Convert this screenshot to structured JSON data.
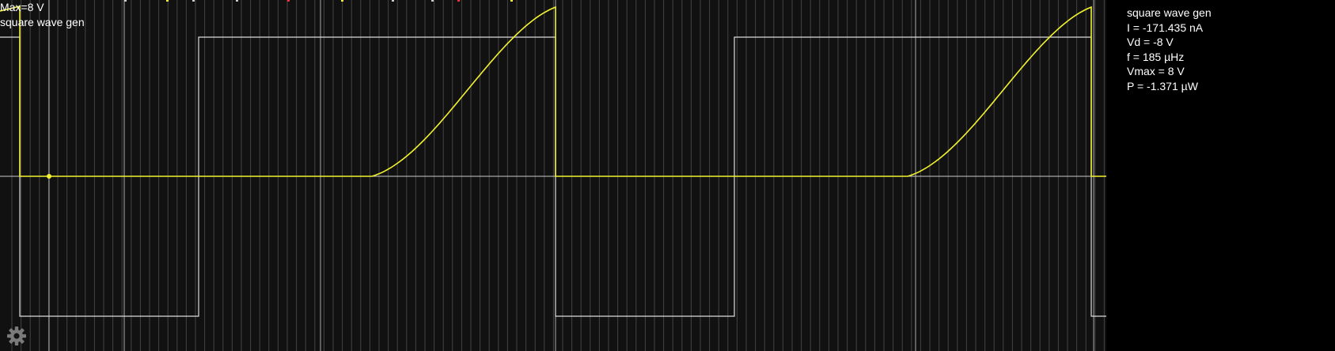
{
  "scope": {
    "max_label": "Max=8 V",
    "name_label": "square wave gen"
  },
  "info_panel": {
    "lines": [
      "square wave gen",
      "I = -171.435 nA",
      "Vd = -8 V",
      "f = 185 µHz",
      "Vmax = 8 V",
      "P = -1.371 µW"
    ]
  },
  "colors": {
    "background": "#000000",
    "plot_background": "#111111",
    "grid_minor": "#444444",
    "grid_major": "#aaaaaa",
    "axis": "#cccccc",
    "voltage_trace": "#dddddd",
    "current_trace": "#f2f230",
    "text": "#ffffff",
    "settings_icon": "#7a7a7a"
  },
  "icons": {
    "settings": "gear-icon"
  }
}
